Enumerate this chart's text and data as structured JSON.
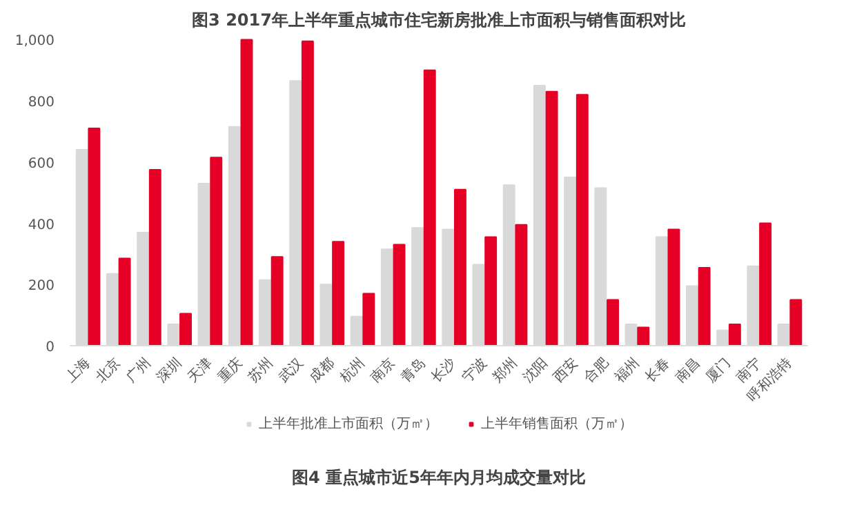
{
  "chart_data": {
    "type": "bar",
    "title": "图3 2017年上半年重点城市住宅新房批准上市面积与销售面积对比",
    "categories": [
      "上海",
      "北京",
      "广州",
      "深圳",
      "天津",
      "重庆",
      "苏州",
      "武汉",
      "成都",
      "杭州",
      "南京",
      "青岛",
      "长沙",
      "宁波",
      "郑州",
      "沈阳",
      "西安",
      "合肥",
      "福州",
      "长春",
      "南昌",
      "厦门",
      "南宁",
      "呼和浩特"
    ],
    "series": [
      {
        "name": "上半年批准上市面积（万㎡）",
        "color": "#d9d9d9",
        "values": [
          640,
          235,
          370,
          70,
          530,
          715,
          215,
          865,
          200,
          95,
          315,
          385,
          380,
          265,
          525,
          850,
          550,
          515,
          70,
          355,
          195,
          50,
          260,
          70
        ]
      },
      {
        "name": "上半年销售面积（万㎡）",
        "color": "#e60026",
        "values": [
          710,
          285,
          575,
          105,
          615,
          1000,
          290,
          995,
          340,
          170,
          330,
          900,
          510,
          355,
          395,
          830,
          820,
          150,
          60,
          380,
          255,
          70,
          400,
          150
        ]
      }
    ],
    "ylim": [
      0,
      1010
    ],
    "yticks": [
      0,
      200,
      400,
      600,
      800,
      {
        "value": 1000,
        "label": "1,000"
      }
    ],
    "grid": false,
    "legend": "bottom",
    "annotations": [
      "图4 重点城市近5年年内月均成交量对比"
    ]
  }
}
